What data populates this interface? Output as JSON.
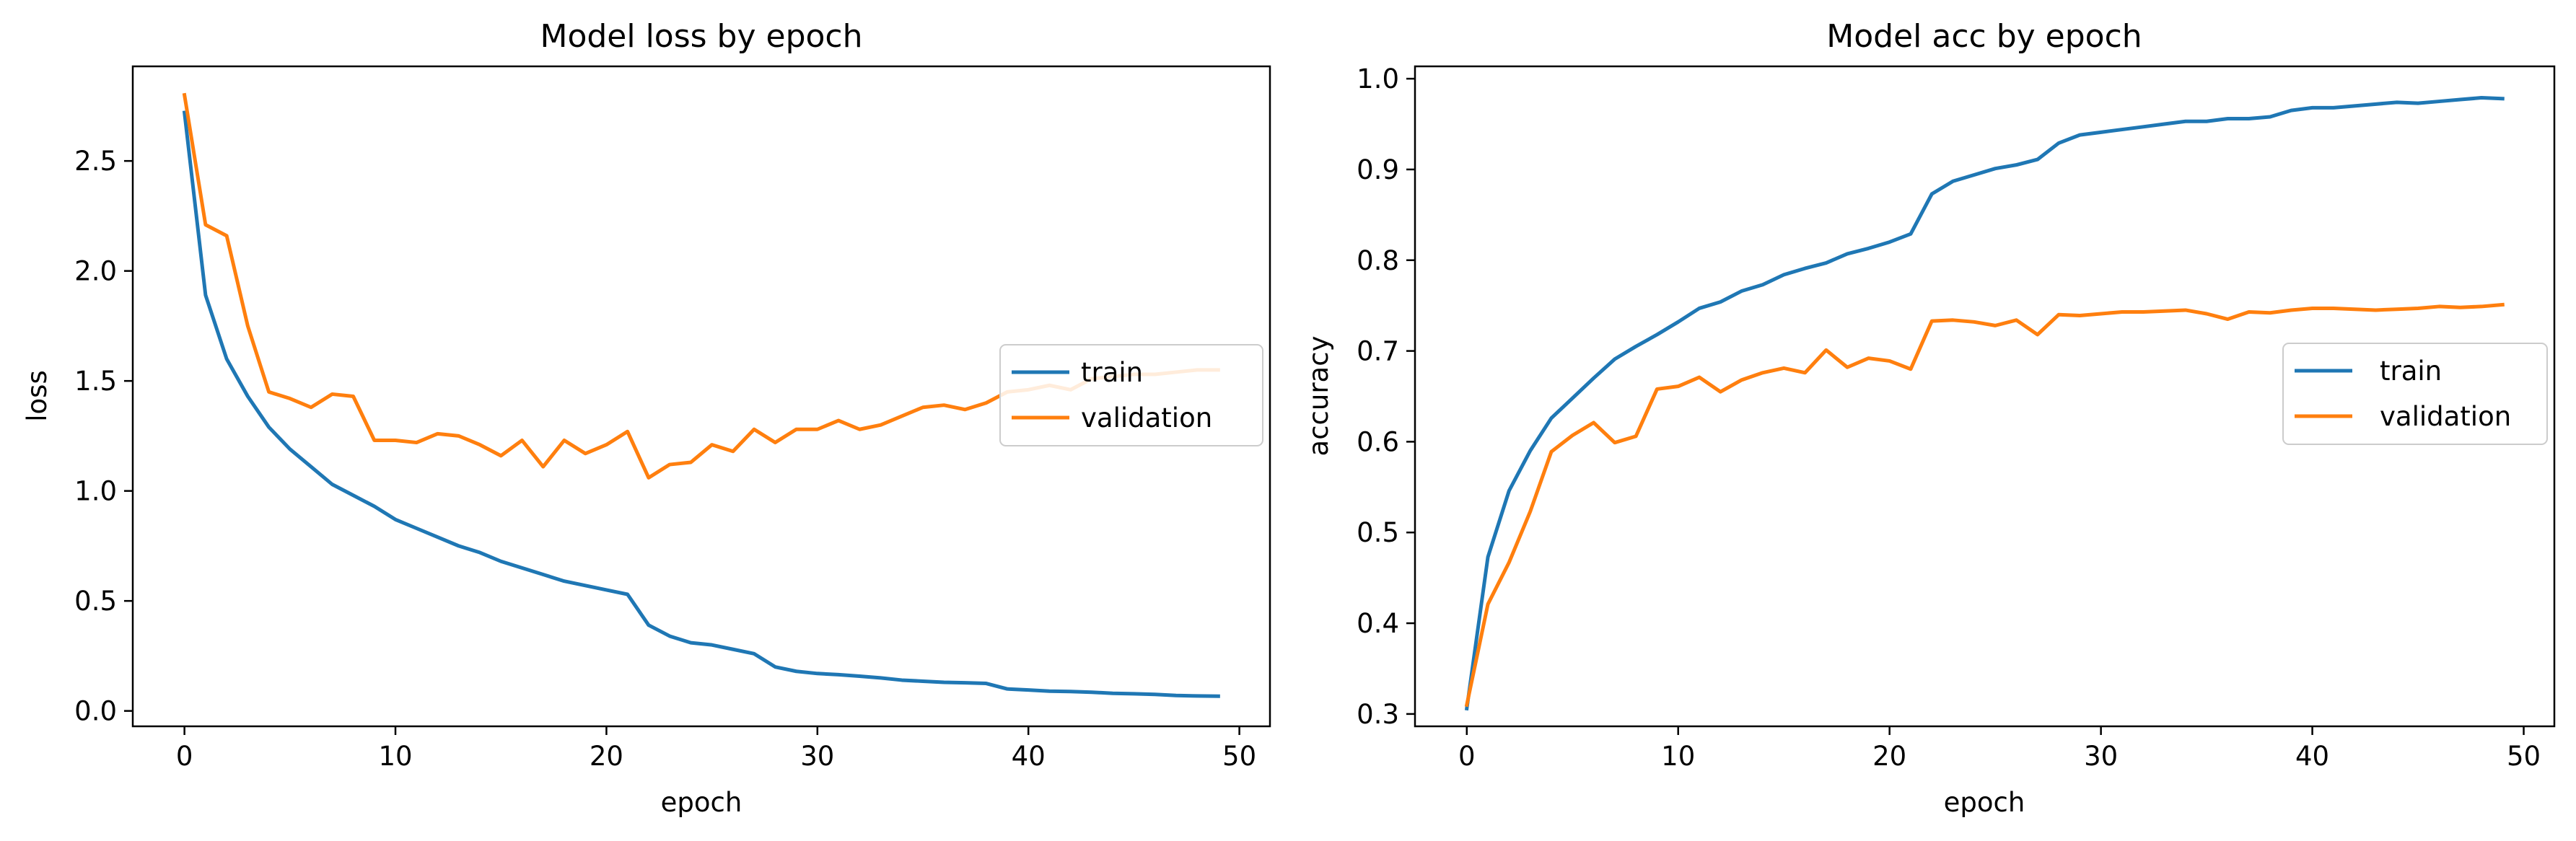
{
  "colors": {
    "train": "#1f77b4",
    "validation": "#ff7f0e",
    "frame": "#000000",
    "legend_border": "#cccccc"
  },
  "chart_data": [
    {
      "type": "line",
      "title": "Model loss by epoch",
      "xlabel": "epoch",
      "ylabel": "loss",
      "xlim": [
        -2.45,
        51.45
      ],
      "ylim": [
        -0.07,
        2.93
      ],
      "xticks": [
        0,
        10,
        20,
        30,
        40,
        50
      ],
      "yticks": [
        0.0,
        0.5,
        1.0,
        1.5,
        2.0,
        2.5
      ],
      "xtick_labels": [
        "0",
        "10",
        "20",
        "30",
        "40",
        "50"
      ],
      "ytick_labels": [
        "0.0",
        "0.5",
        "1.0",
        "1.5",
        "2.0",
        "2.5"
      ],
      "grid": false,
      "legend_position": "center-right",
      "x": [
        0,
        1,
        2,
        3,
        4,
        5,
        6,
        7,
        8,
        9,
        10,
        11,
        12,
        13,
        14,
        15,
        16,
        17,
        18,
        19,
        20,
        21,
        22,
        23,
        24,
        25,
        26,
        27,
        28,
        29,
        30,
        31,
        32,
        33,
        34,
        35,
        36,
        37,
        38,
        39,
        40,
        41,
        42,
        43,
        44,
        45,
        46,
        47,
        48,
        49
      ],
      "series": [
        {
          "name": "train",
          "color": "#1f77b4",
          "values": [
            2.72,
            1.89,
            1.6,
            1.43,
            1.29,
            1.19,
            1.11,
            1.03,
            0.98,
            0.93,
            0.87,
            0.83,
            0.79,
            0.75,
            0.72,
            0.68,
            0.65,
            0.62,
            0.59,
            0.57,
            0.55,
            0.53,
            0.39,
            0.34,
            0.31,
            0.3,
            0.28,
            0.26,
            0.2,
            0.18,
            0.17,
            0.165,
            0.158,
            0.15,
            0.14,
            0.135,
            0.13,
            0.128,
            0.125,
            0.1,
            0.095,
            0.09,
            0.088,
            0.085,
            0.08,
            0.078,
            0.075,
            0.07,
            0.068,
            0.067
          ]
        },
        {
          "name": "validation",
          "color": "#ff7f0e",
          "values": [
            2.8,
            2.21,
            2.16,
            1.75,
            1.45,
            1.42,
            1.38,
            1.44,
            1.43,
            1.23,
            1.23,
            1.22,
            1.26,
            1.25,
            1.21,
            1.16,
            1.23,
            1.11,
            1.23,
            1.17,
            1.21,
            1.27,
            1.06,
            1.12,
            1.13,
            1.21,
            1.18,
            1.28,
            1.22,
            1.28,
            1.28,
            1.32,
            1.28,
            1.3,
            1.34,
            1.38,
            1.39,
            1.37,
            1.4,
            1.45,
            1.46,
            1.48,
            1.46,
            1.51,
            1.52,
            1.53,
            1.53,
            1.54,
            1.55,
            1.55
          ]
        }
      ]
    },
    {
      "type": "line",
      "title": "Model acc by epoch",
      "xlabel": "epoch",
      "ylabel": "accuracy",
      "xlim": [
        -2.45,
        51.45
      ],
      "ylim": [
        0.2864,
        1.0136
      ],
      "xticks": [
        0,
        10,
        20,
        30,
        40,
        50
      ],
      "yticks": [
        0.3,
        0.4,
        0.5,
        0.6,
        0.7,
        0.8,
        0.9,
        1.0
      ],
      "xtick_labels": [
        "0",
        "10",
        "20",
        "30",
        "40",
        "50"
      ],
      "ytick_labels": [
        "0.3",
        "0.4",
        "0.5",
        "0.6",
        "0.7",
        "0.8",
        "0.9",
        "1.0"
      ],
      "grid": false,
      "legend_position": "center-right",
      "x": [
        0,
        1,
        2,
        3,
        4,
        5,
        6,
        7,
        8,
        9,
        10,
        11,
        12,
        13,
        14,
        15,
        16,
        17,
        18,
        19,
        20,
        21,
        22,
        23,
        24,
        25,
        26,
        27,
        28,
        29,
        30,
        31,
        32,
        33,
        34,
        35,
        36,
        37,
        38,
        39,
        40,
        41,
        42,
        43,
        44,
        45,
        46,
        47,
        48,
        49
      ],
      "series": [
        {
          "name": "train",
          "color": "#1f77b4",
          "values": [
            0.306,
            0.473,
            0.546,
            0.59,
            0.626,
            0.648,
            0.67,
            0.691,
            0.705,
            0.718,
            0.732,
            0.747,
            0.754,
            0.766,
            0.773,
            0.784,
            0.791,
            0.797,
            0.807,
            0.813,
            0.82,
            0.829,
            0.873,
            0.887,
            0.894,
            0.901,
            0.905,
            0.911,
            0.929,
            0.938,
            0.941,
            0.944,
            0.947,
            0.95,
            0.953,
            0.953,
            0.956,
            0.956,
            0.958,
            0.965,
            0.968,
            0.968,
            0.97,
            0.972,
            0.974,
            0.973,
            0.975,
            0.977,
            0.979,
            0.978
          ]
        },
        {
          "name": "validation",
          "color": "#ff7f0e",
          "values": [
            0.31,
            0.421,
            0.467,
            0.523,
            0.589,
            0.607,
            0.621,
            0.599,
            0.606,
            0.658,
            0.661,
            0.671,
            0.655,
            0.668,
            0.676,
            0.681,
            0.676,
            0.701,
            0.682,
            0.692,
            0.689,
            0.68,
            0.733,
            0.734,
            0.732,
            0.728,
            0.734,
            0.718,
            0.74,
            0.739,
            0.741,
            0.743,
            0.743,
            0.744,
            0.745,
            0.741,
            0.735,
            0.743,
            0.742,
            0.745,
            0.747,
            0.747,
            0.746,
            0.745,
            0.746,
            0.747,
            0.749,
            0.748,
            0.749,
            0.751
          ]
        }
      ]
    }
  ]
}
